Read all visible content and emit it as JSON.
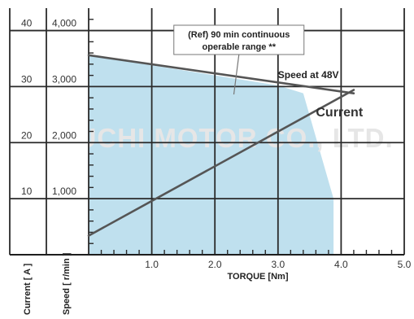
{
  "watermark": "MABUCHI MOTOR CO., LTD.",
  "chart_data": {
    "type": "line",
    "xlabel": "TORQUE [Nm]",
    "xlim": [
      0,
      5.0
    ],
    "x_ticks": [
      "1.0",
      "2.0",
      "3.0",
      "4.0",
      "5.0"
    ],
    "y_axes": [
      {
        "label": "Current [ A ]",
        "ticks": [
          "10",
          "20",
          "30",
          "40"
        ],
        "ylim": [
          0,
          44
        ]
      },
      {
        "label": "Speed [ r/min ]",
        "ticks": [
          "1,000",
          "2,000",
          "3,000",
          "4,000"
        ],
        "ylim": [
          0,
          4400
        ]
      }
    ],
    "grid": true,
    "series": [
      {
        "name": "Speed at 48V",
        "axis": "speed",
        "x": [
          0,
          4.2
        ],
        "y": [
          3560,
          2880
        ]
      },
      {
        "name": "Current",
        "axis": "current",
        "x": [
          0,
          4.2
        ],
        "y": [
          3.4,
          29.4
        ]
      }
    ],
    "region": {
      "label": "(Ref) 90 min continuous operable range **",
      "label_lines": [
        "(Ref) 90 min continuous",
        "operable range **"
      ],
      "axis": "speed",
      "x": [
        0,
        0,
        3.0,
        3.4,
        3.88,
        3.88
      ],
      "y": [
        0,
        3560,
        3020,
        2880,
        1000,
        0
      ]
    }
  }
}
